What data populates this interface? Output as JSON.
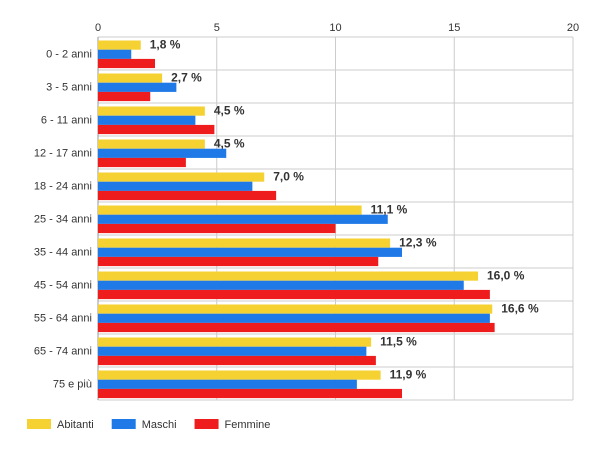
{
  "chart_data": {
    "type": "bar",
    "orientation": "horizontal",
    "categories": [
      "0 - 2 anni",
      "3 - 5 anni",
      "6 - 11 anni",
      "12 - 17 anni",
      "18 - 24 anni",
      "25 - 34 anni",
      "35 - 44 anni",
      "45 - 54 anni",
      "55 - 64 anni",
      "65 - 74 anni",
      "75 e più"
    ],
    "series": [
      {
        "name": "Abitanti",
        "color": "#f5d232",
        "values": [
          1.8,
          2.7,
          4.5,
          4.5,
          7.0,
          11.1,
          12.3,
          16.0,
          16.6,
          11.5,
          11.9
        ]
      },
      {
        "name": "Maschi",
        "color": "#1f7ae8",
        "values": [
          1.4,
          3.3,
          4.1,
          5.4,
          6.5,
          12.2,
          12.8,
          15.4,
          16.5,
          11.3,
          10.9
        ]
      },
      {
        "name": "Femmine",
        "color": "#ee1c1c",
        "values": [
          2.4,
          2.2,
          4.9,
          3.7,
          7.5,
          10.0,
          11.8,
          16.5,
          16.7,
          11.7,
          12.8
        ]
      }
    ],
    "data_labels": [
      "1,8 %",
      "2,7 %",
      "4,5 %",
      "4,5 %",
      "7,0 %",
      "11,1 %",
      "12,3 %",
      "16,0 %",
      "16,6 %",
      "11,5 %",
      "11,9 %"
    ],
    "x_ticks": [
      0,
      5,
      10,
      15,
      20
    ],
    "xlim": [
      0,
      20
    ],
    "x_axis_position": "top",
    "grid": true,
    "legend_position": "bottom-left",
    "title": "",
    "xlabel": "",
    "ylabel": ""
  }
}
